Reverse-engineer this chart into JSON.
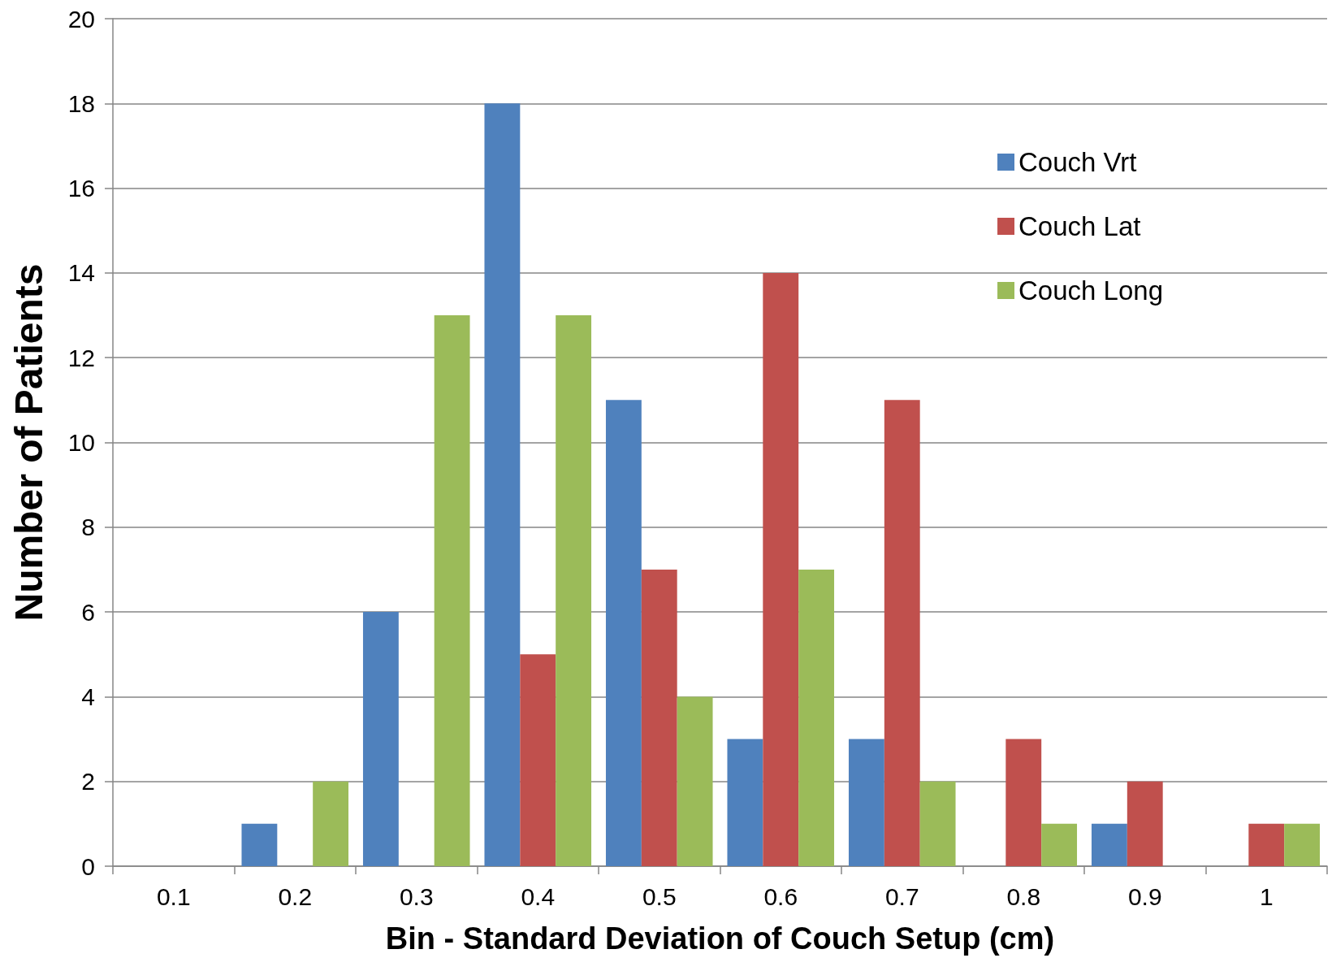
{
  "chart_data": {
    "type": "bar",
    "categories": [
      "0.1",
      "0.2",
      "0.3",
      "0.4",
      "0.5",
      "0.6",
      "0.7",
      "0.8",
      "0.9",
      "1"
    ],
    "series": [
      {
        "name": "Couch Vrt",
        "color": "#4f81bd",
        "values": [
          0,
          1,
          6,
          18,
          11,
          3,
          3,
          0,
          1,
          0
        ]
      },
      {
        "name": "Couch Lat",
        "color": "#c0504d",
        "values": [
          0,
          0,
          0,
          5,
          7,
          14,
          11,
          3,
          2,
          1
        ]
      },
      {
        "name": "Couch Long",
        "color": "#9bbb59",
        "values": [
          0,
          2,
          13,
          13,
          4,
          7,
          2,
          1,
          0,
          1
        ]
      }
    ],
    "xlabel": "Bin - Standard Deviation of Couch Setup (cm)",
    "ylabel": "Number of Patients",
    "ylim": [
      0,
      20
    ],
    "yticks": [
      0,
      2,
      4,
      6,
      8,
      10,
      12,
      14,
      16,
      18,
      20
    ],
    "grid": "y",
    "legend": "top right"
  }
}
